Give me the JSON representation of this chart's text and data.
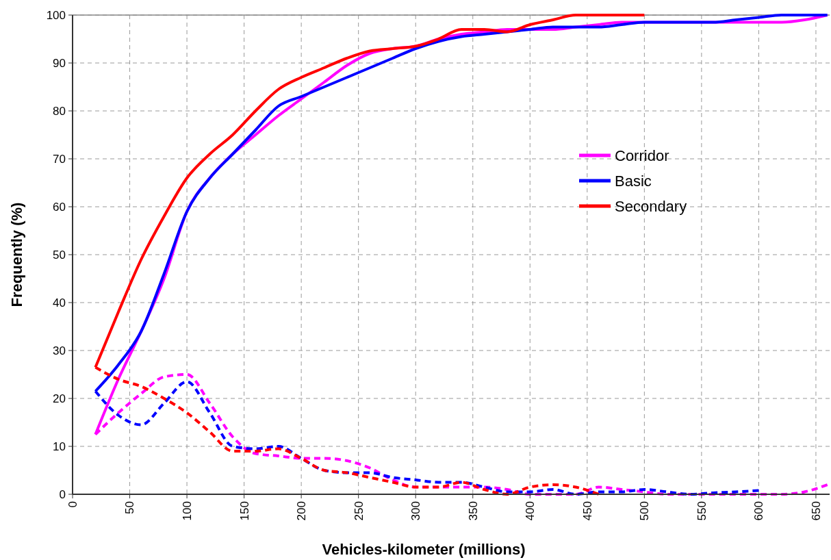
{
  "chart_data": {
    "type": "line",
    "xlabel": "Vehicles-kilometer (millions)",
    "ylabel": "Frequently (%)",
    "xlim": [
      0,
      662
    ],
    "ylim": [
      0,
      100
    ],
    "xticks": [
      0,
      50,
      100,
      150,
      200,
      250,
      300,
      350,
      400,
      450,
      500,
      550,
      600,
      650
    ],
    "yticks": [
      0,
      10,
      20,
      30,
      40,
      50,
      60,
      70,
      80,
      90,
      100
    ],
    "grid": true,
    "legend": "right",
    "series": [
      {
        "name": "Corridor",
        "color": "#ff00ff",
        "line_style": "solid",
        "x": [
          20,
          40,
          60,
          80,
          100,
          120,
          140,
          160,
          180,
          200,
          220,
          240,
          260,
          280,
          300,
          320,
          340,
          360,
          380,
          400,
          420,
          440,
          460,
          480,
          500,
          520,
          540,
          560,
          580,
          600,
          620,
          640,
          660
        ],
        "values": [
          12.5,
          24,
          34,
          45,
          59,
          66,
          71,
          75,
          79,
          82.5,
          86,
          89.5,
          92,
          93,
          93.5,
          95,
          96,
          96.5,
          97,
          97,
          97,
          97.5,
          98,
          98.5,
          98.5,
          98.5,
          98.5,
          98.5,
          98.5,
          98.5,
          98.5,
          99,
          100
        ]
      },
      {
        "name": "Basic",
        "color": "#0000ff",
        "line_style": "solid",
        "x": [
          20,
          40,
          60,
          80,
          100,
          120,
          140,
          160,
          180,
          200,
          220,
          240,
          260,
          280,
          300,
          320,
          340,
          360,
          380,
          400,
          420,
          440,
          460,
          480,
          500,
          520,
          540,
          560,
          580,
          600,
          620,
          640,
          660
        ],
        "values": [
          21.5,
          27,
          34,
          46,
          59,
          66,
          71,
          76,
          81,
          83,
          85,
          87,
          89,
          91,
          93,
          94.5,
          95.5,
          96,
          96.5,
          97,
          97.5,
          97.5,
          97.5,
          98,
          98.5,
          98.5,
          98.5,
          98.5,
          99,
          99.5,
          100,
          100,
          100
        ]
      },
      {
        "name": "Secondary",
        "color": "#ff0000",
        "line_style": "solid",
        "x": [
          20,
          40,
          60,
          80,
          100,
          120,
          140,
          160,
          180,
          200,
          220,
          240,
          260,
          280,
          300,
          320,
          340,
          360,
          380,
          400,
          420,
          440,
          460,
          480,
          500
        ],
        "values": [
          26.5,
          38,
          49,
          58,
          66,
          71,
          75,
          80,
          84.5,
          87,
          89,
          91,
          92.5,
          93,
          93.5,
          95,
          97,
          97,
          96.5,
          98,
          99,
          100,
          100,
          100,
          100
        ]
      },
      {
        "color": "#ff00ff",
        "line_style": "dashed",
        "x": [
          20,
          40,
          60,
          80,
          100,
          120,
          140,
          160,
          180,
          200,
          220,
          240,
          260,
          280,
          300,
          320,
          340,
          360,
          380,
          400,
          420,
          440,
          460,
          480,
          500,
          520,
          540,
          560,
          580,
          600,
          620,
          640,
          660
        ],
        "values": [
          12.5,
          17,
          21,
          24.5,
          25,
          19,
          12,
          8.5,
          8,
          7.5,
          7.5,
          7,
          5.5,
          3,
          1.5,
          1.5,
          1.5,
          1.5,
          1,
          0,
          0,
          0,
          1.5,
          1,
          0.5,
          0,
          0,
          0,
          0,
          0,
          0,
          0.5,
          2
        ]
      },
      {
        "color": "#0000ff",
        "line_style": "dashed",
        "x": [
          20,
          40,
          60,
          80,
          100,
          120,
          140,
          160,
          180,
          200,
          220,
          240,
          260,
          280,
          300,
          320,
          340,
          360,
          380,
          400,
          420,
          440,
          460,
          480,
          500,
          520,
          540,
          560,
          580,
          600
        ],
        "values": [
          21.5,
          16.5,
          14.5,
          19,
          23.5,
          17,
          10,
          9.5,
          10,
          7.5,
          5,
          4.5,
          4.5,
          3.5,
          3,
          2.5,
          2.5,
          1.5,
          0.5,
          0.5,
          1,
          0,
          0.5,
          0.5,
          1,
          0.5,
          0,
          0.3,
          0.5,
          0.8
        ]
      },
      {
        "color": "#ff0000",
        "line_style": "dashed",
        "x": [
          20,
          40,
          60,
          80,
          100,
          120,
          140,
          160,
          180,
          200,
          220,
          240,
          260,
          280,
          300,
          320,
          340,
          360,
          380,
          400,
          420,
          440,
          460
        ],
        "values": [
          26.5,
          24,
          22.5,
          20,
          17,
          13,
          9,
          9,
          9.5,
          7.5,
          5,
          4.5,
          3.5,
          2.5,
          1.5,
          1.5,
          2.5,
          1,
          0,
          1.5,
          2,
          1.5,
          0
        ]
      }
    ]
  }
}
